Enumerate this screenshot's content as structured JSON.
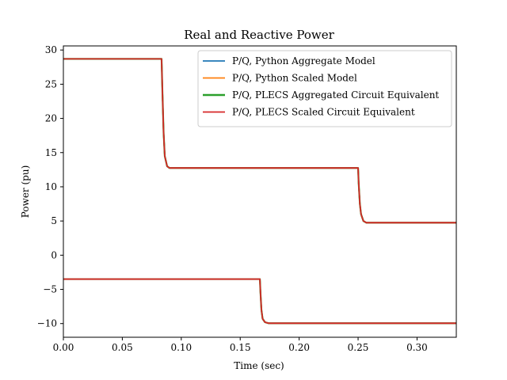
{
  "chart_data": {
    "type": "line",
    "title": "Real and Reactive Power",
    "xlabel": "Time (sec)",
    "ylabel": "Power (pu)",
    "xlim": [
      0,
      0.3333
    ],
    "ylim": [
      -12,
      30.6
    ],
    "xticks": [
      0.0,
      0.05,
      0.1,
      0.15,
      0.2,
      0.25,
      0.3
    ],
    "xtick_labels": [
      "0.00",
      "0.05",
      "0.10",
      "0.15",
      "0.20",
      "0.25",
      "0.30"
    ],
    "yticks": [
      -10,
      -5,
      0,
      5,
      10,
      15,
      20,
      25,
      30
    ],
    "ytick_labels": [
      "−10",
      "−5",
      "0",
      "5",
      "10",
      "15",
      "20",
      "25",
      "30"
    ],
    "grid": false,
    "legend_position": "top-right",
    "series": [
      {
        "name": "P/Q, Python Aggregate Model",
        "color": "#1f77b4",
        "curves": [
          {
            "x": [
              0,
              0.0833,
              0.084,
              0.085,
              0.086,
              0.088,
              0.09,
              0.25,
              0.2505,
              0.2515,
              0.2525,
              0.2545,
              0.257,
              0.3333
            ],
            "y": [
              28.7,
              28.7,
              24.0,
              18.0,
              14.5,
              13.0,
              12.75,
              12.75,
              10.5,
              7.5,
              6.0,
              5.0,
              4.75,
              4.75
            ]
          },
          {
            "x": [
              0,
              0.1667,
              0.1672,
              0.168,
              0.169,
              0.171,
              0.174,
              0.3333
            ],
            "y": [
              -3.5,
              -3.5,
              -5.5,
              -8.0,
              -9.3,
              -9.8,
              -9.95,
              -9.95
            ]
          }
        ]
      },
      {
        "name": "P/Q, Python Scaled Model",
        "color": "#ff7f0e",
        "curves": [
          {
            "x": [
              0,
              0.0833,
              0.084,
              0.085,
              0.086,
              0.088,
              0.09,
              0.25,
              0.2505,
              0.2515,
              0.2525,
              0.2545,
              0.257,
              0.3333
            ],
            "y": [
              28.7,
              28.7,
              24.0,
              18.0,
              14.5,
              13.0,
              12.75,
              12.75,
              10.5,
              7.5,
              6.0,
              5.0,
              4.75,
              4.75
            ]
          },
          {
            "x": [
              0,
              0.1667,
              0.1672,
              0.168,
              0.169,
              0.171,
              0.174,
              0.3333
            ],
            "y": [
              -3.5,
              -3.5,
              -5.5,
              -8.0,
              -9.3,
              -9.8,
              -9.95,
              -9.95
            ]
          }
        ]
      },
      {
        "name": "P/Q, PLECS Aggregated Circuit Equivalent",
        "color": "#2ca02c",
        "curves": [
          {
            "x": [
              0,
              0.0833,
              0.084,
              0.085,
              0.086,
              0.088,
              0.09,
              0.25,
              0.2505,
              0.2515,
              0.2525,
              0.2545,
              0.257,
              0.3333
            ],
            "y": [
              28.7,
              28.7,
              24.0,
              18.0,
              14.5,
              13.0,
              12.75,
              12.75,
              10.5,
              7.5,
              6.0,
              5.0,
              4.75,
              4.75
            ]
          },
          {
            "x": [
              0,
              0.1667,
              0.1672,
              0.168,
              0.169,
              0.171,
              0.174,
              0.3333
            ],
            "y": [
              -3.5,
              -3.5,
              -5.5,
              -8.0,
              -9.3,
              -9.8,
              -9.95,
              -9.95
            ]
          }
        ]
      },
      {
        "name": "P/Q, PLECS Scaled Circuit Equivalent",
        "color": "#d62728",
        "curves": [
          {
            "x": [
              0,
              0.0833,
              0.084,
              0.085,
              0.086,
              0.088,
              0.09,
              0.25,
              0.2505,
              0.2515,
              0.2525,
              0.2545,
              0.257,
              0.3333
            ],
            "y": [
              28.7,
              28.7,
              24.0,
              18.0,
              14.5,
              13.0,
              12.75,
              12.75,
              10.5,
              7.5,
              6.0,
              5.0,
              4.75,
              4.75
            ]
          },
          {
            "x": [
              0,
              0.1667,
              0.1672,
              0.168,
              0.169,
              0.171,
              0.174,
              0.3333
            ],
            "y": [
              -3.5,
              -3.5,
              -5.5,
              -8.0,
              -9.3,
              -9.8,
              -9.95,
              -9.95
            ]
          }
        ]
      }
    ]
  }
}
